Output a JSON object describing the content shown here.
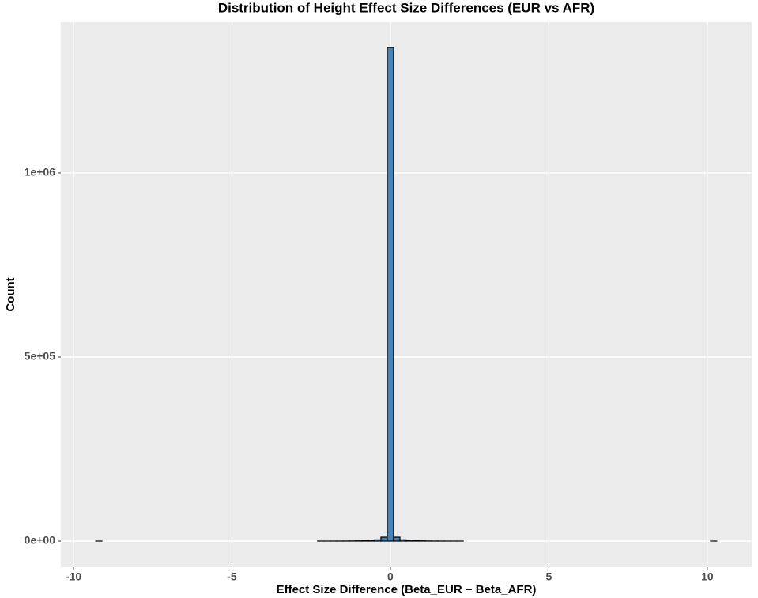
{
  "chart_data": {
    "type": "histogram",
    "title": "Distribution of Height Effect Size Differences (EUR vs AFR)",
    "x_label": "Effect Size Difference (Beta_EUR − Beta_AFR)",
    "y_label": "Count",
    "bins": [
      -9.3,
      -9.1,
      -8.9,
      -8.7,
      -8.5,
      -8.3,
      -8.1,
      -7.9,
      -7.7,
      -7.5,
      -7.3,
      -7.1,
      -6.9,
      -6.7,
      -6.5,
      -6.3,
      -6.1,
      -5.9,
      -5.7,
      -5.5,
      -5.3,
      -5.1,
      -4.9,
      -4.7,
      -4.5,
      -4.3,
      -4.1,
      -3.9,
      -3.7,
      -3.5,
      -3.3,
      -3.1,
      -2.9,
      -2.7,
      -2.5,
      -2.3,
      -2.1,
      -1.9,
      -1.7,
      -1.5,
      -1.3,
      -1.1,
      -0.9,
      -0.7,
      -0.5,
      -0.3,
      -0.1,
      0.1,
      0.3,
      0.5,
      0.7,
      0.9,
      1.1,
      1.3,
      1.5,
      1.7,
      1.9,
      2.1,
      2.3,
      2.5,
      2.7,
      2.9,
      3.1,
      3.3,
      3.5,
      3.7,
      3.9,
      4.1,
      4.3,
      4.5,
      4.7,
      4.9,
      5.1,
      5.3,
      5.5,
      5.7,
      5.9,
      6.1,
      6.3,
      6.5,
      6.7,
      6.9,
      7.1,
      7.3,
      7.5,
      7.7,
      7.9,
      8.1,
      8.3,
      8.5,
      8.7,
      8.9,
      9.1,
      9.3,
      9.5,
      9.7,
      9.9,
      10.1,
      10.3
    ],
    "values": [
      1,
      0,
      0,
      0,
      0,
      0,
      0,
      0,
      0,
      0,
      0,
      0,
      0,
      0,
      0,
      0,
      0,
      0,
      0,
      0,
      0,
      0,
      0,
      0,
      0,
      0,
      0,
      0,
      0,
      0,
      0,
      0,
      0,
      0,
      0,
      20,
      40,
      80,
      150,
      250,
      400,
      700,
      1200,
      2000,
      3500,
      10700,
      1341000,
      10700,
      3500,
      2000,
      1200,
      700,
      400,
      250,
      150,
      80,
      40,
      20,
      0,
      0,
      0,
      0,
      0,
      0,
      0,
      0,
      0,
      0,
      0,
      0,
      0,
      0,
      0,
      0,
      0,
      0,
      0,
      0,
      0,
      0,
      0,
      0,
      0,
      0,
      0,
      0,
      0,
      0,
      0,
      0,
      0,
      0,
      0,
      0,
      0,
      0,
      0,
      1
    ],
    "color": "#4682b4",
    "edge_color": "#000000",
    "xlim": [
      -10.4,
      11.4
    ],
    "xticks": [
      -10,
      -5,
      0,
      5,
      10
    ],
    "ylim": [
      -70800,
      1409800
    ],
    "yticks": [
      {
        "value": 0,
        "label": "0e+00"
      },
      {
        "value": 500000,
        "label": "5e+05"
      },
      {
        "value": 1000000,
        "label": "1e+06"
      }
    ],
    "grid": true
  }
}
